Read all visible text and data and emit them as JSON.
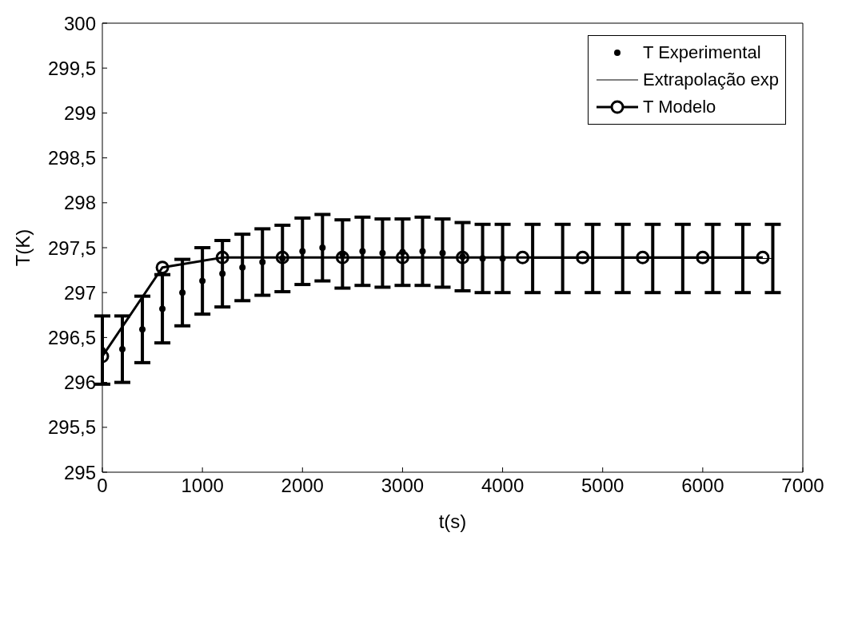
{
  "chart_data": {
    "type": "scatter",
    "xlabel": "t(s)",
    "ylabel": "T(K)",
    "xlim": [
      0,
      7000
    ],
    "xticks": [
      0,
      1000,
      2000,
      3000,
      4000,
      5000,
      6000,
      7000
    ],
    "ylim": [
      295,
      300
    ],
    "yticks": [
      295,
      {
        "value": 295.5,
        "label": "295,5"
      },
      296,
      {
        "value": 296.5,
        "label": "296,5"
      },
      297,
      {
        "value": 297.5,
        "label": "297,5"
      },
      298,
      {
        "value": 298.5,
        "label": "298,5"
      },
      299,
      {
        "value": 299.5,
        "label": "299,5"
      },
      300
    ],
    "legend": "top right",
    "series": [
      {
        "name": "T Experimental",
        "marker": "circle",
        "color": "#000000",
        "x": [
          0,
          200,
          400,
          600,
          800,
          1000,
          1200,
          1400,
          1600,
          1800,
          2000,
          2200,
          2400,
          2600,
          2800,
          3000,
          3200,
          3400,
          3600,
          3800,
          4000
        ],
        "values": [
          296.36,
          296.37,
          296.59,
          296.82,
          297.0,
          297.13,
          297.21,
          297.28,
          297.34,
          297.38,
          297.46,
          297.5,
          297.43,
          297.46,
          297.44,
          297.45,
          297.46,
          297.44,
          297.4,
          297.38,
          297.38
        ],
        "errors": [
          0.38,
          0.37,
          0.37,
          0.38,
          0.37,
          0.37,
          0.37,
          0.37,
          0.37,
          0.37,
          0.37,
          0.37,
          0.38,
          0.38,
          0.38,
          0.37,
          0.38,
          0.38,
          0.38,
          0.38,
          0.38
        ]
      },
      {
        "name": "Extrapolação exp",
        "type": "line",
        "marker": "none",
        "color": "#000000",
        "x": [
          4300,
          4600,
          4900,
          5200,
          5500,
          5800,
          6100,
          6400,
          6700
        ],
        "values": [
          297.38,
          297.38,
          297.38,
          297.38,
          297.38,
          297.38,
          297.38,
          297.38,
          297.38
        ],
        "errors": [
          0.38,
          0.38,
          0.38,
          0.38,
          0.38,
          0.38,
          0.38,
          0.38,
          0.38
        ]
      },
      {
        "name": "T Modelo",
        "type": "line",
        "marker": "circle",
        "color": "#000000",
        "x": [
          0,
          600,
          1200,
          1800,
          2400,
          3000,
          3600,
          4200,
          4800,
          5400,
          6000,
          6600
        ],
        "values": [
          296.29,
          297.28,
          297.39,
          297.39,
          297.39,
          297.39,
          297.39,
          297.39,
          297.39,
          297.39,
          297.39,
          297.39
        ]
      }
    ]
  }
}
